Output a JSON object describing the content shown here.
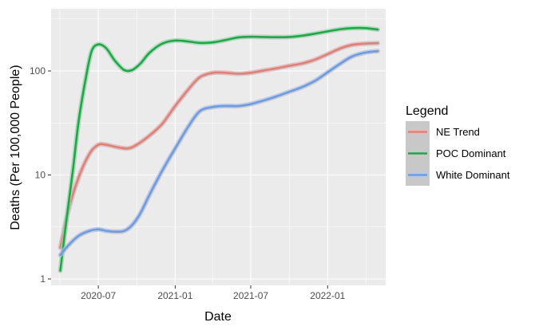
{
  "chart_data": {
    "type": "line",
    "title": "",
    "xlabel": "Date",
    "ylabel": "Deaths (Per 100,000 People)",
    "y_scale": "log",
    "ylim": [
      1,
      350
    ],
    "xlim": [
      "2020-03-10",
      "2022-05-20"
    ],
    "x_ticks": [
      {
        "date": "2020-07-01",
        "label": "2020-07"
      },
      {
        "date": "2021-01-01",
        "label": "2021-01"
      },
      {
        "date": "2021-07-01",
        "label": "2021-07"
      },
      {
        "date": "2022-01-01",
        "label": "2022-01"
      }
    ],
    "y_ticks": [
      {
        "value": 1,
        "label": "1"
      },
      {
        "value": 10,
        "label": "10"
      },
      {
        "value": 100,
        "label": "100"
      }
    ],
    "grid": true,
    "legend": {
      "title": "Legend",
      "position": "right"
    },
    "series": [
      {
        "name": "NE Trend",
        "color": "#F8766D",
        "x": [
          "2020-04-01",
          "2020-04-20",
          "2020-05-15",
          "2020-06-10",
          "2020-07-01",
          "2020-07-20",
          "2020-08-15",
          "2020-09-10",
          "2020-10-01",
          "2020-11-01",
          "2020-12-01",
          "2021-01-01",
          "2021-02-01",
          "2021-03-01",
          "2021-04-01",
          "2021-05-01",
          "2021-06-01",
          "2021-07-01",
          "2021-08-01",
          "2021-09-01",
          "2021-10-01",
          "2021-11-01",
          "2021-12-01",
          "2022-01-01",
          "2022-02-01",
          "2022-03-01",
          "2022-04-01",
          "2022-05-01"
        ],
        "values": [
          2.0,
          4.5,
          9.5,
          16.0,
          19.5,
          19.5,
          18.5,
          18.0,
          19.5,
          24.0,
          31.0,
          46.0,
          66.0,
          87.0,
          96.0,
          96.0,
          94.0,
          96.0,
          101.0,
          106.0,
          112.0,
          118.0,
          128.0,
          145.0,
          165.0,
          178.0,
          183.0,
          185.0
        ]
      },
      {
        "name": "POC Dominant",
        "color": "#00BA38",
        "x": [
          "2020-04-01",
          "2020-04-15",
          "2020-05-01",
          "2020-05-15",
          "2020-06-01",
          "2020-06-15",
          "2020-07-01",
          "2020-07-20",
          "2020-08-10",
          "2020-09-01",
          "2020-09-20",
          "2020-10-10",
          "2020-11-01",
          "2020-12-01",
          "2021-01-01",
          "2021-02-01",
          "2021-03-01",
          "2021-04-01",
          "2021-05-01",
          "2021-06-01",
          "2021-07-01",
          "2021-08-01",
          "2021-09-01",
          "2021-10-01",
          "2021-11-01",
          "2021-12-01",
          "2022-01-01",
          "2022-02-01",
          "2022-03-01",
          "2022-04-01",
          "2022-05-01"
        ],
        "values": [
          1.2,
          3.5,
          11.0,
          33.0,
          85.0,
          155.0,
          180.0,
          165.0,
          125.0,
          102.0,
          102.0,
          118.0,
          150.0,
          183.0,
          196.0,
          192.0,
          186.0,
          188.0,
          198.0,
          210.0,
          213.0,
          212.0,
          211.0,
          212.0,
          218.0,
          228.0,
          240.0,
          252.0,
          258.0,
          258.0,
          250.0
        ]
      },
      {
        "name": "White Dominant",
        "color": "#619CFF",
        "x": [
          "2020-04-01",
          "2020-04-20",
          "2020-05-15",
          "2020-06-10",
          "2020-07-01",
          "2020-07-20",
          "2020-08-10",
          "2020-09-01",
          "2020-09-20",
          "2020-10-10",
          "2020-11-01",
          "2020-12-01",
          "2021-01-01",
          "2021-02-01",
          "2021-03-01",
          "2021-04-01",
          "2021-05-01",
          "2021-06-01",
          "2021-07-01",
          "2021-08-01",
          "2021-09-01",
          "2021-10-01",
          "2021-11-01",
          "2021-12-01",
          "2022-01-01",
          "2022-02-01",
          "2022-03-01",
          "2022-04-01",
          "2022-05-01"
        ],
        "values": [
          1.7,
          2.1,
          2.6,
          2.9,
          3.0,
          2.9,
          2.85,
          2.9,
          3.3,
          4.3,
          6.5,
          11.0,
          18.0,
          29.0,
          41.0,
          45.0,
          46.0,
          46.0,
          48.0,
          52.0,
          57.0,
          63.0,
          70.0,
          80.0,
          97.0,
          118.0,
          138.0,
          150.0,
          155.0
        ]
      }
    ]
  }
}
